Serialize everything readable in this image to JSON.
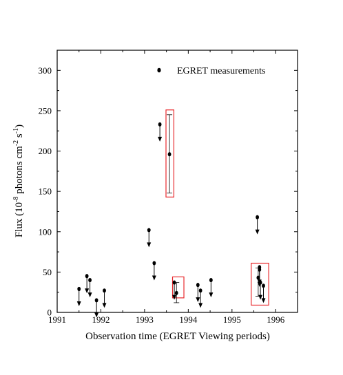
{
  "chart_data": {
    "type": "scatter",
    "xlabel": "Observation time (EGRET Viewing periods)",
    "ylabel_base": "Flux (10",
    "ylabel_exp1": "-8",
    "ylabel_mid": " photons cm",
    "ylabel_exp2": "-2",
    "ylabel_s": " s",
    "ylabel_exp3": "-1",
    "ylabel_close": ")",
    "xlim": [
      1991,
      1996.5
    ],
    "ylim": [
      0,
      325
    ],
    "x_ticks": [
      "1991",
      "1992",
      "1993",
      "1994",
      "1995",
      "1996"
    ],
    "y_ticks": [
      "0",
      "50",
      "100",
      "150",
      "200",
      "250",
      "300"
    ],
    "legend": {
      "label": "EGRET measurements",
      "placement": "top-right"
    },
    "series": [
      {
        "name": "EGRET measurements",
        "points": [
          {
            "x": 1991.5,
            "y": 29,
            "upper_limit": true
          },
          {
            "x": 1991.68,
            "y": 45,
            "upper_limit": true
          },
          {
            "x": 1991.75,
            "y": 40,
            "upper_limit": true
          },
          {
            "x": 1991.9,
            "y": 15,
            "upper_limit": true
          },
          {
            "x": 1992.08,
            "y": 27,
            "upper_limit": true
          },
          {
            "x": 1993.1,
            "y": 102,
            "upper_limit": true
          },
          {
            "x": 1993.22,
            "y": 61,
            "upper_limit": true
          },
          {
            "x": 1993.35,
            "y": 233,
            "upper_limit": true
          },
          {
            "x": 1993.57,
            "y": 196,
            "err_low": 148,
            "err_high": 245
          },
          {
            "x": 1993.68,
            "y": 37,
            "upper_limit": true
          },
          {
            "x": 1993.73,
            "y": 24,
            "err_low": 12,
            "err_high": 37
          },
          {
            "x": 1994.22,
            "y": 34,
            "upper_limit": true
          },
          {
            "x": 1994.28,
            "y": 27,
            "upper_limit": true
          },
          {
            "x": 1994.52,
            "y": 40,
            "upper_limit": true
          },
          {
            "x": 1995.58,
            "y": 118,
            "upper_limit": true
          },
          {
            "x": 1995.6,
            "y": 43,
            "err_low": 20,
            "err_high": 55
          },
          {
            "x": 1995.63,
            "y": 56,
            "upper_limit": true
          },
          {
            "x": 1995.63,
            "y": 53,
            "upper_limit": true
          },
          {
            "x": 1995.65,
            "y": 37,
            "upper_limit": true
          },
          {
            "x": 1995.72,
            "y": 33,
            "upper_limit": true
          }
        ]
      }
    ],
    "highlight_boxes": [
      {
        "x_range": [
          1993.49,
          1993.67
        ],
        "y_range": [
          143,
          251
        ],
        "color": "#e8282c"
      },
      {
        "x_range": [
          1993.64,
          1993.9
        ],
        "y_range": [
          18,
          44
        ],
        "color": "#e8282c"
      },
      {
        "x_range": [
          1995.44,
          1995.84
        ],
        "y_range": [
          9,
          61
        ],
        "color": "#e8282c"
      }
    ],
    "grid": false
  }
}
